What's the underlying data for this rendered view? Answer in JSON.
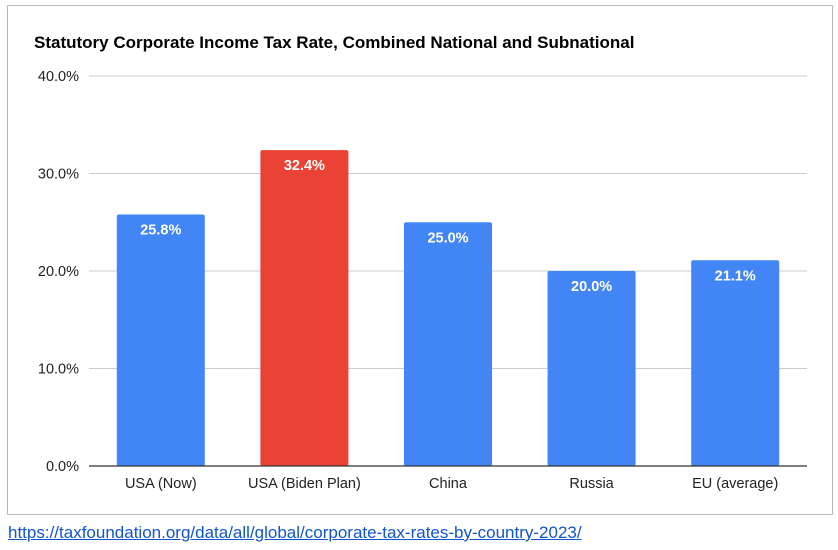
{
  "chart_data": {
    "type": "bar",
    "title": "Statutory Corporate Income Tax Rate, Combined National and Subnational",
    "xlabel": "",
    "ylabel": "",
    "categories": [
      "USA (Now)",
      "USA (Biden Plan)",
      "China",
      "Russia",
      "EU (average)"
    ],
    "values": [
      25.8,
      32.4,
      25.0,
      20.0,
      21.1
    ],
    "data_labels": [
      "25.8%",
      "32.4%",
      "25.0%",
      "20.0%",
      "21.1%"
    ],
    "ylim": [
      0,
      40
    ],
    "yticks": [
      0,
      10,
      20,
      30,
      40
    ],
    "ytick_labels": [
      "0.0%",
      "10.0%",
      "20.0%",
      "30.0%",
      "40.0%"
    ],
    "bar_colors": [
      "#4285f4",
      "#ea4335",
      "#4285f4",
      "#4285f4",
      "#4285f4"
    ],
    "grid": true,
    "legend": "none"
  },
  "source": {
    "url_text": "https://taxfoundation.org/data/all/global/corporate-tax-rates-by-country-2023/"
  }
}
